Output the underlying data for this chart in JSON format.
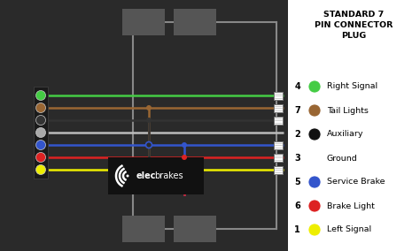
{
  "bg_color": "#2a2a2a",
  "title": "STANDARD 7\nPIN CONNECTOR\nPLUG",
  "legend": [
    {
      "pin": "4",
      "color": "#44cc44",
      "label": "Right Signal"
    },
    {
      "pin": "7",
      "color": "#996633",
      "label": "Tail Lights"
    },
    {
      "pin": "2",
      "color": "#111111",
      "label": "Auxiliary"
    },
    {
      "pin": "3",
      "color": null,
      "label": "Ground"
    },
    {
      "pin": "5",
      "color": "#3355cc",
      "label": "Service Brake"
    },
    {
      "pin": "6",
      "color": "#dd2222",
      "label": "Brake Light"
    },
    {
      "pin": "1",
      "color": "#eeee00",
      "label": "Left Signal"
    }
  ],
  "wire_colors": {
    "green": "#44cc44",
    "brown": "#996633",
    "black": "#333333",
    "white": "#bbbbbb",
    "blue": "#3355cc",
    "red": "#dd2222",
    "yellow": "#eeee00"
  },
  "legend_bg": "#ffffff",
  "trailer_color": "#555555",
  "frame_color": "#888888",
  "plug_color": "#1a1a1a",
  "elecbrakes_bg": "#111111"
}
